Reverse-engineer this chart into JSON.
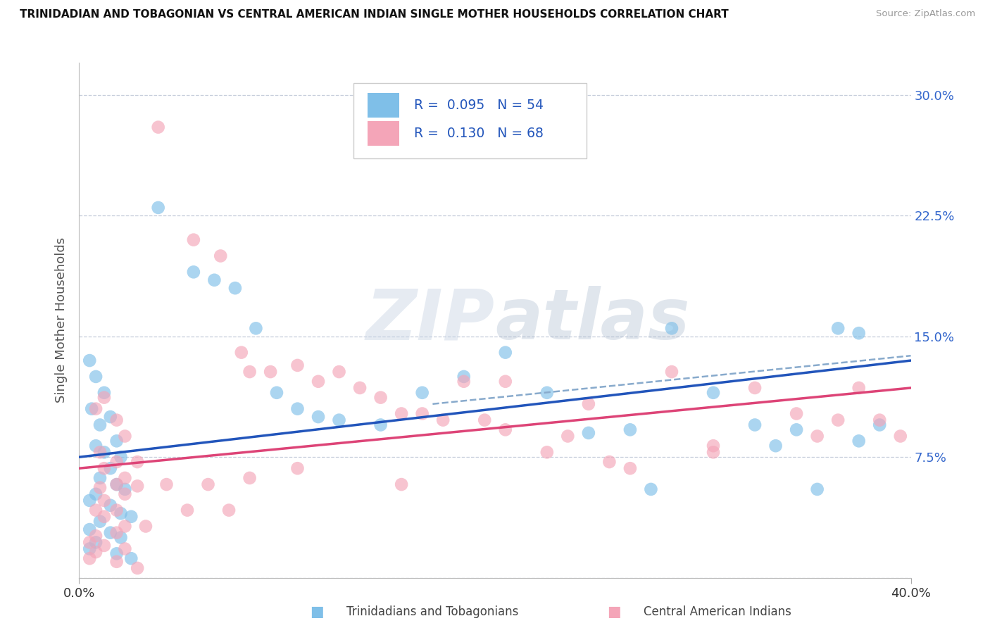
{
  "title": "TRINIDADIAN AND TOBAGONIAN VS CENTRAL AMERICAN INDIAN SINGLE MOTHER HOUSEHOLDS CORRELATION CHART",
  "source": "Source: ZipAtlas.com",
  "ylabel": "Single Mother Households",
  "y_ticks": [
    0.0,
    0.075,
    0.15,
    0.225,
    0.3
  ],
  "y_tick_labels": [
    "",
    "7.5%",
    "15.0%",
    "22.5%",
    "30.0%"
  ],
  "xlim": [
    0.0,
    0.4
  ],
  "ylim": [
    0.0,
    0.32
  ],
  "x_tick_left": "0.0%",
  "x_tick_right": "40.0%",
  "legend_r1": "0.095",
  "legend_n1": "54",
  "legend_r2": "0.130",
  "legend_n2": "68",
  "color_blue": "#7fbfe8",
  "color_pink": "#f4a5b8",
  "line_blue": "#2255bb",
  "line_pink": "#dd4477",
  "line_dash_color": "#88aacc",
  "watermark": "ZIPatlas",
  "blue_points": [
    [
      0.005,
      0.135
    ],
    [
      0.008,
      0.125
    ],
    [
      0.012,
      0.115
    ],
    [
      0.006,
      0.105
    ],
    [
      0.015,
      0.1
    ],
    [
      0.01,
      0.095
    ],
    [
      0.018,
      0.085
    ],
    [
      0.008,
      0.082
    ],
    [
      0.012,
      0.078
    ],
    [
      0.02,
      0.075
    ],
    [
      0.015,
      0.068
    ],
    [
      0.01,
      0.062
    ],
    [
      0.018,
      0.058
    ],
    [
      0.022,
      0.055
    ],
    [
      0.008,
      0.052
    ],
    [
      0.005,
      0.048
    ],
    [
      0.015,
      0.045
    ],
    [
      0.02,
      0.04
    ],
    [
      0.025,
      0.038
    ],
    [
      0.01,
      0.035
    ],
    [
      0.005,
      0.03
    ],
    [
      0.015,
      0.028
    ],
    [
      0.02,
      0.025
    ],
    [
      0.008,
      0.022
    ],
    [
      0.005,
      0.018
    ],
    [
      0.018,
      0.015
    ],
    [
      0.025,
      0.012
    ],
    [
      0.038,
      0.23
    ],
    [
      0.055,
      0.19
    ],
    [
      0.065,
      0.185
    ],
    [
      0.075,
      0.18
    ],
    [
      0.085,
      0.155
    ],
    [
      0.095,
      0.115
    ],
    [
      0.105,
      0.105
    ],
    [
      0.115,
      0.1
    ],
    [
      0.125,
      0.098
    ],
    [
      0.145,
      0.095
    ],
    [
      0.165,
      0.115
    ],
    [
      0.185,
      0.125
    ],
    [
      0.205,
      0.14
    ],
    [
      0.225,
      0.115
    ],
    [
      0.245,
      0.09
    ],
    [
      0.265,
      0.092
    ],
    [
      0.275,
      0.055
    ],
    [
      0.285,
      0.155
    ],
    [
      0.305,
      0.115
    ],
    [
      0.325,
      0.095
    ],
    [
      0.345,
      0.092
    ],
    [
      0.365,
      0.155
    ],
    [
      0.375,
      0.152
    ],
    [
      0.385,
      0.095
    ],
    [
      0.375,
      0.085
    ],
    [
      0.355,
      0.055
    ],
    [
      0.335,
      0.082
    ]
  ],
  "pink_points": [
    [
      0.008,
      0.105
    ],
    [
      0.012,
      0.112
    ],
    [
      0.018,
      0.098
    ],
    [
      0.022,
      0.088
    ],
    [
      0.01,
      0.078
    ],
    [
      0.018,
      0.072
    ],
    [
      0.012,
      0.068
    ],
    [
      0.022,
      0.062
    ],
    [
      0.028,
      0.072
    ],
    [
      0.018,
      0.058
    ],
    [
      0.01,
      0.056
    ],
    [
      0.022,
      0.052
    ],
    [
      0.028,
      0.057
    ],
    [
      0.012,
      0.048
    ],
    [
      0.018,
      0.042
    ],
    [
      0.008,
      0.042
    ],
    [
      0.012,
      0.038
    ],
    [
      0.022,
      0.032
    ],
    [
      0.018,
      0.028
    ],
    [
      0.008,
      0.026
    ],
    [
      0.005,
      0.022
    ],
    [
      0.012,
      0.02
    ],
    [
      0.022,
      0.018
    ],
    [
      0.008,
      0.016
    ],
    [
      0.005,
      0.012
    ],
    [
      0.018,
      0.01
    ],
    [
      0.028,
      0.006
    ],
    [
      0.038,
      0.28
    ],
    [
      0.055,
      0.21
    ],
    [
      0.068,
      0.2
    ],
    [
      0.078,
      0.14
    ],
    [
      0.082,
      0.128
    ],
    [
      0.092,
      0.128
    ],
    [
      0.105,
      0.132
    ],
    [
      0.115,
      0.122
    ],
    [
      0.125,
      0.128
    ],
    [
      0.135,
      0.118
    ],
    [
      0.145,
      0.112
    ],
    [
      0.155,
      0.102
    ],
    [
      0.165,
      0.102
    ],
    [
      0.175,
      0.098
    ],
    [
      0.185,
      0.122
    ],
    [
      0.195,
      0.098
    ],
    [
      0.205,
      0.092
    ],
    [
      0.225,
      0.078
    ],
    [
      0.235,
      0.088
    ],
    [
      0.245,
      0.108
    ],
    [
      0.265,
      0.068
    ],
    [
      0.285,
      0.128
    ],
    [
      0.305,
      0.082
    ],
    [
      0.325,
      0.118
    ],
    [
      0.345,
      0.102
    ],
    [
      0.355,
      0.088
    ],
    [
      0.365,
      0.098
    ],
    [
      0.375,
      0.118
    ],
    [
      0.385,
      0.098
    ],
    [
      0.395,
      0.088
    ],
    [
      0.305,
      0.078
    ],
    [
      0.255,
      0.072
    ],
    [
      0.205,
      0.122
    ],
    [
      0.155,
      0.058
    ],
    [
      0.105,
      0.068
    ],
    [
      0.082,
      0.062
    ],
    [
      0.062,
      0.058
    ],
    [
      0.042,
      0.058
    ],
    [
      0.032,
      0.032
    ],
    [
      0.052,
      0.042
    ],
    [
      0.072,
      0.042
    ]
  ],
  "blue_line_x": [
    0.0,
    0.4
  ],
  "blue_line_y": [
    0.075,
    0.135
  ],
  "pink_line_x": [
    0.0,
    0.4
  ],
  "pink_line_y": [
    0.068,
    0.118
  ],
  "dash_line_x": [
    0.17,
    0.4
  ],
  "dash_line_y": [
    0.108,
    0.138
  ]
}
